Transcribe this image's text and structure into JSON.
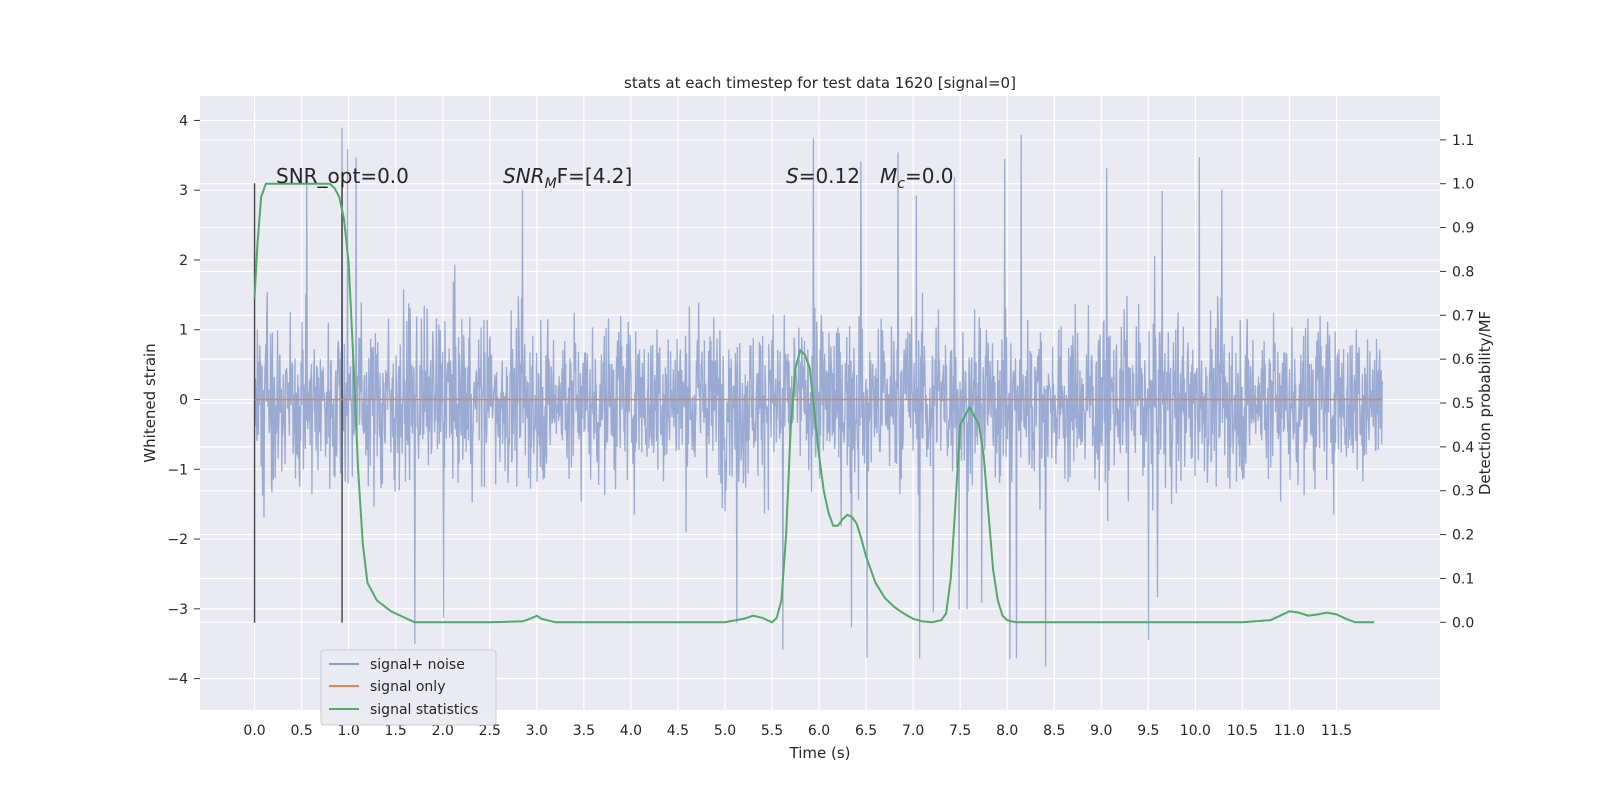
{
  "chart_data": {
    "type": "line",
    "title": "stats at each timestep for test data 1620 [signal=0]",
    "xlabel": "Time (s)",
    "ylabel": "Whitened strain",
    "ylabel_right": "Detection probability/MF",
    "xlim": [
      -0.58,
      12.6
    ],
    "ylim": [
      -4.45,
      4.35
    ],
    "ylim_right": [
      -0.2,
      1.2
    ],
    "x_ticks": [
      "0.0",
      "0.5",
      "1.0",
      "1.5",
      "2.0",
      "2.5",
      "3.0",
      "3.5",
      "4.0",
      "4.5",
      "5.0",
      "5.5",
      "6.0",
      "6.5",
      "7.0",
      "7.5",
      "8.0",
      "8.5",
      "9.0",
      "9.5",
      "10.0",
      "10.5",
      "11.0",
      "11.5"
    ],
    "y_ticks": [
      "4",
      "3",
      "2",
      "1",
      "0",
      "−1",
      "−2",
      "−3",
      "−4"
    ],
    "y_ticks_right": [
      "1.1",
      "1.0",
      "0.9",
      "0.8",
      "0.7",
      "0.6",
      "0.5",
      "0.4",
      "0.3",
      "0.2",
      "0.1",
      "0.0"
    ],
    "grid": true,
    "legend_position": "lower-left",
    "annotations": {
      "snr_opt": "SNR_opt=0.0",
      "snr_mf_main": "SNR",
      "snr_mf_sub": "M",
      "snr_mf_rest": "F=[4.2]",
      "s_sym": "S",
      "s_val": "=0.12",
      "mc_main": "M",
      "mc_sub": "c",
      "mc_val": "=0.0"
    },
    "series": [
      {
        "name": "signal+ noise",
        "color": "#8c9fcc",
        "x_range": [
          0.0,
          11.99
        ],
        "envelope_upper": 1.6,
        "envelope_lower": -1.6,
        "peaks_max": 3.95,
        "peaks_min": -4.1
      },
      {
        "name": "signal only",
        "color": "#dd8452",
        "x": [
          0.0,
          11.99
        ],
        "y": [
          0.0,
          0.0
        ]
      },
      {
        "name": "signal statistics",
        "color": "#55a868",
        "axis": "right",
        "x": [
          0.0,
          0.03,
          0.07,
          0.12,
          0.2,
          0.3,
          0.5,
          0.7,
          0.8,
          0.85,
          0.9,
          0.95,
          1.0,
          1.05,
          1.1,
          1.15,
          1.2,
          1.3,
          1.45,
          1.6,
          1.7,
          1.8,
          2.0,
          2.5,
          2.85,
          2.95,
          3.0,
          3.05,
          3.2,
          3.5,
          4.0,
          4.5,
          5.0,
          5.2,
          5.3,
          5.4,
          5.5,
          5.55,
          5.6,
          5.65,
          5.7,
          5.75,
          5.8,
          5.85,
          5.9,
          5.95,
          6.0,
          6.05,
          6.1,
          6.15,
          6.2,
          6.25,
          6.3,
          6.35,
          6.4,
          6.45,
          6.5,
          6.6,
          6.7,
          6.8,
          6.9,
          7.0,
          7.1,
          7.2,
          7.3,
          7.35,
          7.4,
          7.45,
          7.5,
          7.55,
          7.6,
          7.65,
          7.7,
          7.75,
          7.8,
          7.85,
          7.9,
          7.95,
          8.0,
          8.05,
          8.1,
          8.15,
          8.2,
          8.3,
          8.5,
          9.0,
          9.5,
          10.0,
          10.5,
          10.8,
          10.9,
          11.0,
          11.1,
          11.2,
          11.3,
          11.4,
          11.5,
          11.6,
          11.7,
          11.8,
          11.9
        ],
        "y": [
          0.74,
          0.86,
          0.97,
          1.0,
          1.0,
          1.0,
          1.0,
          1.0,
          1.0,
          0.99,
          0.97,
          0.92,
          0.82,
          0.6,
          0.35,
          0.18,
          0.09,
          0.05,
          0.025,
          0.01,
          0.0,
          0.0,
          0.0,
          0.0,
          0.002,
          0.01,
          0.015,
          0.008,
          0.0,
          0.0,
          0.0,
          0.0,
          0.0,
          0.008,
          0.015,
          0.01,
          0.0,
          0.01,
          0.05,
          0.2,
          0.45,
          0.58,
          0.62,
          0.61,
          0.58,
          0.48,
          0.38,
          0.3,
          0.25,
          0.22,
          0.22,
          0.235,
          0.245,
          0.24,
          0.225,
          0.19,
          0.15,
          0.09,
          0.055,
          0.035,
          0.02,
          0.008,
          0.002,
          0.0,
          0.005,
          0.02,
          0.1,
          0.27,
          0.45,
          0.47,
          0.49,
          0.47,
          0.45,
          0.38,
          0.25,
          0.12,
          0.05,
          0.015,
          0.005,
          0.002,
          0.0,
          0.0,
          0.0,
          0.0,
          0.0,
          0.0,
          0.0,
          0.0,
          0.0,
          0.005,
          0.015,
          0.025,
          0.022,
          0.015,
          0.018,
          0.022,
          0.018,
          0.008,
          0.0,
          0.0,
          0.0
        ]
      }
    ],
    "vertical_markers": [
      0.0,
      0.93
    ]
  }
}
